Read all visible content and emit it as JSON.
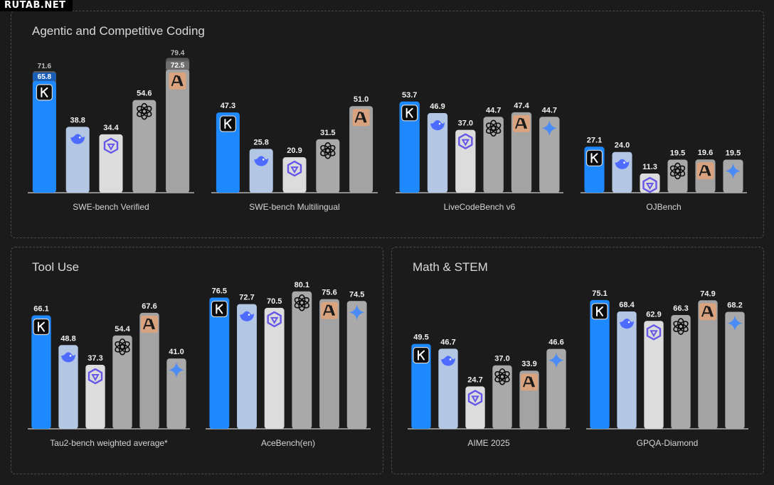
{
  "watermark": "RUTAB.NET",
  "panels": [
    {
      "title": "Agentic and Competitive Coding"
    },
    {
      "title": "Tool Use"
    },
    {
      "title": "Math & STEM"
    }
  ],
  "colors": {
    "kimi": "#1e88ff",
    "deepseek": "#b3c6e4",
    "qwen": "#dcdcdc",
    "gpt": "#a9a9a9",
    "claude": "#a3a3a3",
    "gemini": "#a9a9a9",
    "claude_icon_bg": "#d9a37f",
    "overlay": "#8a8a8a"
  },
  "chart_data": [
    {
      "type": "bar",
      "title": "SWE-bench Verified",
      "panel": 0,
      "ylim": [
        0,
        100
      ],
      "models": [
        "kimi",
        "deepseek",
        "qwen",
        "gpt",
        "claude"
      ],
      "values": [
        65.8,
        38.8,
        34.4,
        54.6,
        72.5
      ],
      "extended": [
        71.6,
        null,
        null,
        null,
        79.4
      ]
    },
    {
      "type": "bar",
      "title": "SWE-bench Multilingual",
      "panel": 0,
      "ylim": [
        0,
        100
      ],
      "models": [
        "kimi",
        "deepseek",
        "qwen",
        "gpt",
        "claude"
      ],
      "values": [
        47.3,
        25.8,
        20.9,
        31.5,
        51.0
      ]
    },
    {
      "type": "bar",
      "title": "LiveCodeBench v6",
      "panel": 0,
      "ylim": [
        0,
        100
      ],
      "models": [
        "kimi",
        "deepseek",
        "qwen",
        "gpt",
        "claude",
        "gemini"
      ],
      "values": [
        53.7,
        46.9,
        37.0,
        44.7,
        47.4,
        44.7
      ]
    },
    {
      "type": "bar",
      "title": "OJBench",
      "panel": 0,
      "ylim": [
        0,
        100
      ],
      "models": [
        "kimi",
        "deepseek",
        "qwen",
        "gpt",
        "claude",
        "gemini"
      ],
      "values": [
        27.1,
        24.0,
        11.3,
        19.5,
        19.6,
        19.5
      ]
    },
    {
      "type": "bar",
      "title": "Tau2-bench weighted average*",
      "panel": 1,
      "ylim": [
        0,
        100
      ],
      "models": [
        "kimi",
        "deepseek",
        "qwen",
        "gpt",
        "claude",
        "gemini"
      ],
      "values": [
        66.1,
        48.8,
        37.3,
        54.4,
        67.6,
        41.0
      ]
    },
    {
      "type": "bar",
      "title": "AceBench(en)",
      "panel": 1,
      "ylim": [
        0,
        100
      ],
      "models": [
        "kimi",
        "deepseek",
        "qwen",
        "gpt",
        "claude",
        "gemini"
      ],
      "values": [
        76.5,
        72.7,
        70.5,
        80.1,
        75.6,
        74.5
      ]
    },
    {
      "type": "bar",
      "title": "AIME 2025",
      "panel": 2,
      "ylim": [
        0,
        100
      ],
      "models": [
        "kimi",
        "deepseek",
        "qwen",
        "gpt",
        "claude",
        "gemini"
      ],
      "values": [
        49.5,
        46.7,
        24.7,
        37.0,
        33.9,
        46.6
      ]
    },
    {
      "type": "bar",
      "title": "GPQA-Diamond",
      "panel": 2,
      "ylim": [
        0,
        100
      ],
      "models": [
        "kimi",
        "deepseek",
        "qwen",
        "gpt",
        "claude",
        "gemini"
      ],
      "values": [
        75.1,
        68.4,
        62.9,
        66.3,
        74.9,
        68.2
      ]
    }
  ]
}
